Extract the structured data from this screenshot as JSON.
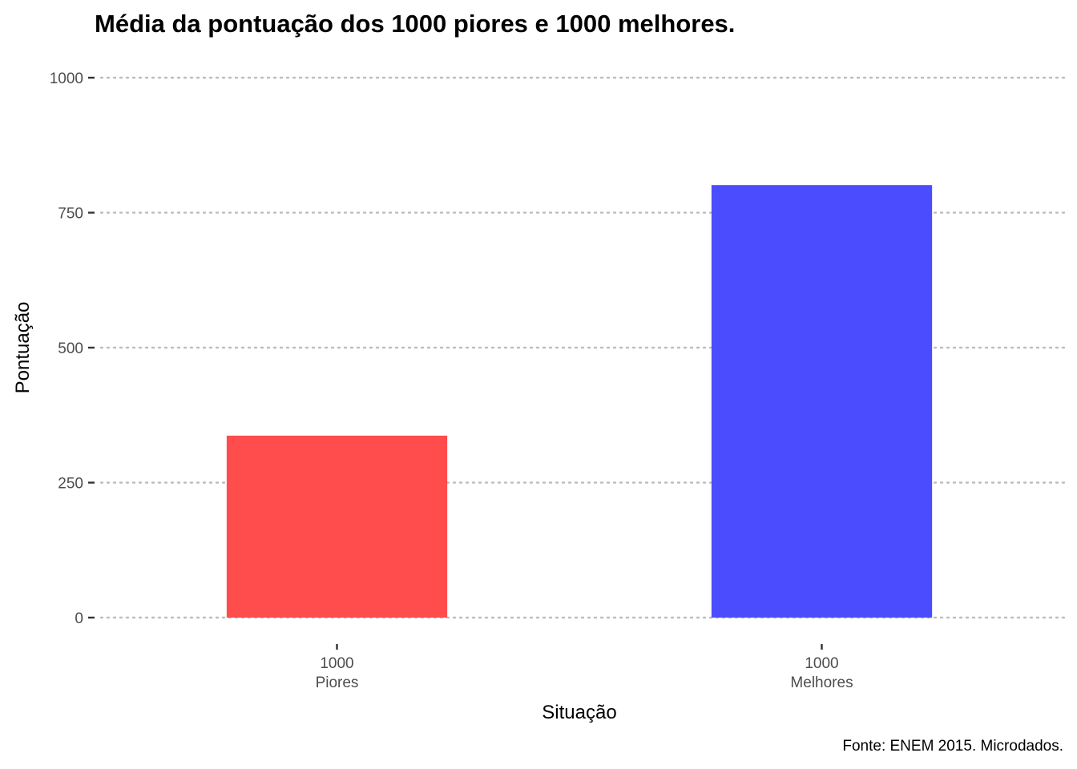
{
  "chart_data": {
    "type": "bar",
    "title": "Média da pontuação dos 1000 piores e 1000 melhores.",
    "xlabel": "Situação",
    "ylabel": "Pontuação",
    "caption": "Fonte: ENEM 2015. Microdados.",
    "categories": [
      {
        "line1": "1000",
        "line2": "Piores"
      },
      {
        "line1": "1000",
        "line2": "Melhores"
      }
    ],
    "values": [
      337,
      801
    ],
    "colors": [
      "#ff4c4c",
      "#4c4cff"
    ],
    "ylim": [
      0,
      1000
    ],
    "yticks": [
      0,
      250,
      500,
      750,
      1000
    ],
    "grid": "horizontal-dotted",
    "legend": "none"
  }
}
